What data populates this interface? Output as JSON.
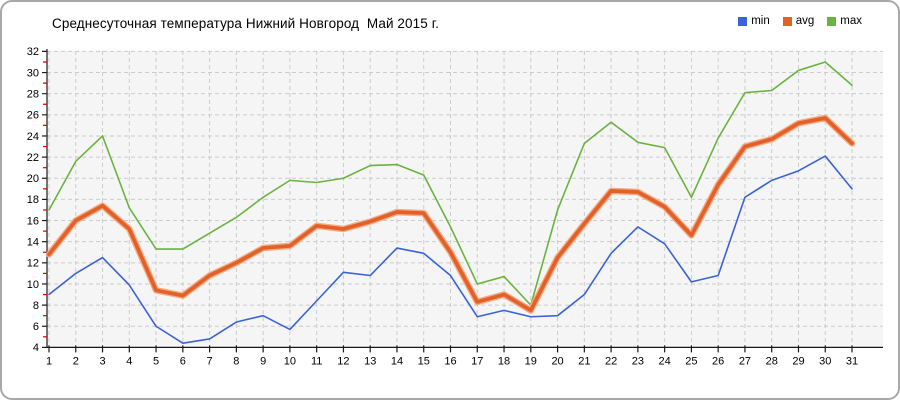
{
  "chart_data": {
    "type": "line",
    "title": "Среднесуточная температура Нижний Новгород  Май 2015 г.",
    "xlabel": "",
    "ylabel": "",
    "x": [
      1,
      2,
      3,
      4,
      5,
      6,
      7,
      8,
      9,
      10,
      11,
      12,
      13,
      14,
      15,
      16,
      17,
      18,
      19,
      20,
      21,
      22,
      23,
      24,
      25,
      26,
      27,
      28,
      29,
      30,
      31
    ],
    "ylim": [
      4,
      32
    ],
    "ytick_step": 2,
    "grid": true,
    "legend_position": "top-right",
    "series": [
      {
        "name": "min",
        "color": "#3b63d8",
        "values": [
          9.0,
          11.0,
          12.5,
          9.9,
          6.0,
          4.4,
          4.8,
          6.4,
          7.0,
          5.7,
          8.4,
          11.1,
          10.8,
          13.4,
          12.9,
          10.8,
          6.9,
          7.5,
          6.9,
          7.0,
          9.0,
          12.9,
          15.4,
          13.8,
          10.2,
          10.8,
          18.2,
          19.8,
          20.7,
          22.1,
          19.0
        ]
      },
      {
        "name": "avg",
        "color": "#e2612b",
        "values": [
          12.8,
          16.0,
          17.4,
          15.2,
          9.4,
          8.9,
          10.8,
          12.0,
          13.4,
          13.6,
          15.5,
          15.2,
          15.9,
          16.8,
          16.7,
          13.0,
          8.3,
          9.0,
          7.5,
          12.5,
          15.7,
          18.8,
          18.7,
          17.3,
          14.6,
          19.4,
          23.0,
          23.7,
          25.2,
          25.7,
          23.3
        ]
      },
      {
        "name": "max",
        "color": "#6ab33f",
        "values": [
          17.0,
          21.6,
          24.0,
          17.2,
          13.3,
          13.3,
          14.8,
          16.3,
          18.2,
          19.8,
          19.6,
          20.0,
          21.2,
          21.3,
          20.3,
          15.4,
          10.0,
          10.7,
          8.0,
          17.0,
          23.3,
          25.3,
          23.4,
          22.9,
          18.2,
          23.8,
          28.1,
          28.3,
          30.2,
          31.0,
          28.8
        ]
      }
    ],
    "colors": {
      "plot_background": "#f5f5f5",
      "grid": "#cccccc",
      "axis": "#1a1a1a",
      "tick_major": "#1a1a1a",
      "tick_minor": "#cc0000",
      "avg_halo": "#f5ac82",
      "tick_label": "#000000"
    }
  }
}
